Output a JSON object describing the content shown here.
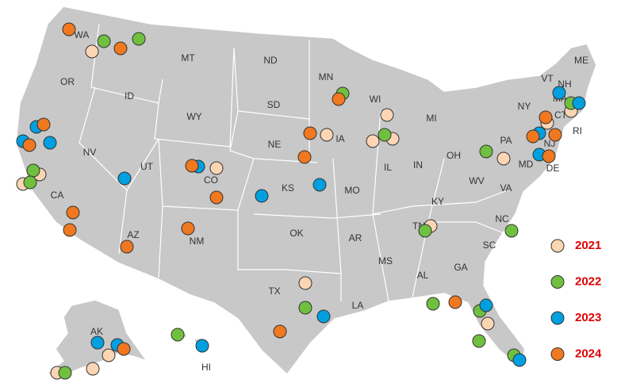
{
  "map": {
    "state_labels": [
      "WA",
      "MT",
      "ND",
      "MN",
      "OR",
      "ID",
      "WY",
      "SD",
      "WI",
      "MI",
      "NV",
      "UT",
      "NE",
      "IA",
      "IL",
      "IN",
      "OH",
      "PA",
      "NY",
      "VT",
      "ME",
      "NH",
      "MA",
      "CT",
      "RI",
      "NJ",
      "DE",
      "MD",
      "CA",
      "CO",
      "KS",
      "MO",
      "KY",
      "WV",
      "VA",
      "AZ",
      "NM",
      "OK",
      "AR",
      "TN",
      "NC",
      "SC",
      "MS",
      "AL",
      "GA",
      "TX",
      "LA",
      "AK",
      "HI"
    ],
    "legend": [
      {
        "label": "2021",
        "color": "#fcd5b5"
      },
      {
        "label": "2022",
        "color": "#70c040"
      },
      {
        "label": "2023",
        "color": "#00a0e0"
      },
      {
        "label": "2024",
        "color": "#f07820"
      }
    ]
  }
}
